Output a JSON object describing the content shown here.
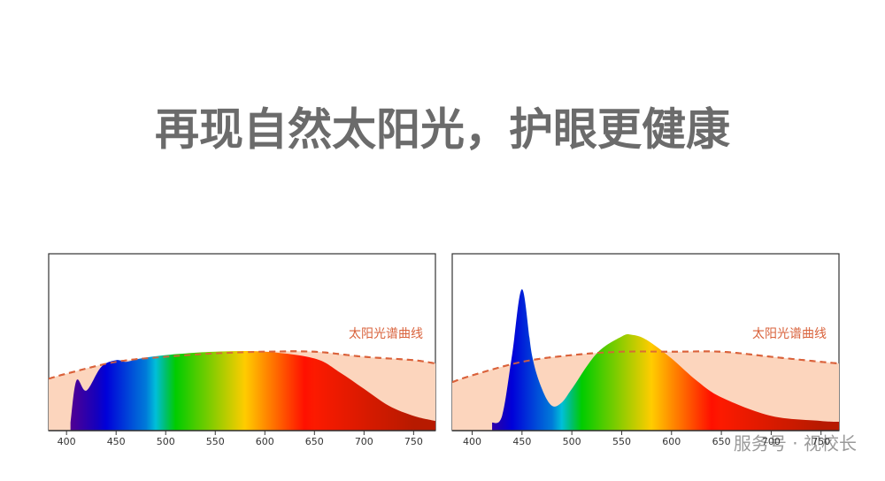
{
  "title": "再现自然太阳光，护眼更健康",
  "watermark": "服务号 · 视校长",
  "chart_data": [
    {
      "type": "area",
      "xlim": [
        382,
        772
      ],
      "ylim": [
        0,
        1
      ],
      "xticks": [
        400,
        450,
        500,
        550,
        600,
        650,
        700,
        750
      ],
      "series": [
        {
          "name": "太阳光谱曲线",
          "color": "#d9623b",
          "fill": "#fcd5bd",
          "dashed": true,
          "x": [
            382,
            400,
            450,
            500,
            550,
            600,
            650,
            700,
            750,
            772
          ],
          "values": [
            0.26,
            0.29,
            0.36,
            0.39,
            0.41,
            0.42,
            0.42,
            0.39,
            0.37,
            0.35
          ]
        },
        {
          "x": [
            404,
            410,
            420,
            435,
            450,
            460,
            475,
            500,
            550,
            600,
            650,
            675,
            700,
            725,
            750,
            772
          ],
          "values": [
            0,
            0.25,
            0.19,
            0.33,
            0.37,
            0.36,
            0.38,
            0.4,
            0.42,
            0.42,
            0.38,
            0.3,
            0.2,
            0.1,
            0.04,
            0.01
          ]
        }
      ]
    },
    {
      "type": "area",
      "xlim": [
        380,
        768
      ],
      "ylim": [
        0,
        1
      ],
      "xticks": [
        400,
        450,
        500,
        550,
        600,
        650,
        700,
        750
      ],
      "series": [
        {
          "name": "太阳光谱曲线",
          "color": "#d9623b",
          "fill": "#fcd5bd",
          "dashed": true,
          "x": [
            380,
            400,
            450,
            500,
            550,
            600,
            650,
            700,
            750,
            768
          ],
          "values": [
            0.24,
            0.28,
            0.36,
            0.4,
            0.42,
            0.42,
            0.42,
            0.39,
            0.36,
            0.35
          ]
        },
        {
          "x": [
            420,
            430,
            440,
            450,
            460,
            470,
            480,
            490,
            500,
            525,
            550,
            560,
            575,
            600,
            625,
            650,
            700,
            750,
            768
          ],
          "values": [
            0,
            0.04,
            0.4,
            0.79,
            0.4,
            0.2,
            0.1,
            0.12,
            0.2,
            0.41,
            0.51,
            0.52,
            0.49,
            0.38,
            0.25,
            0.15,
            0.04,
            0.01,
            0.005
          ]
        }
      ]
    }
  ]
}
